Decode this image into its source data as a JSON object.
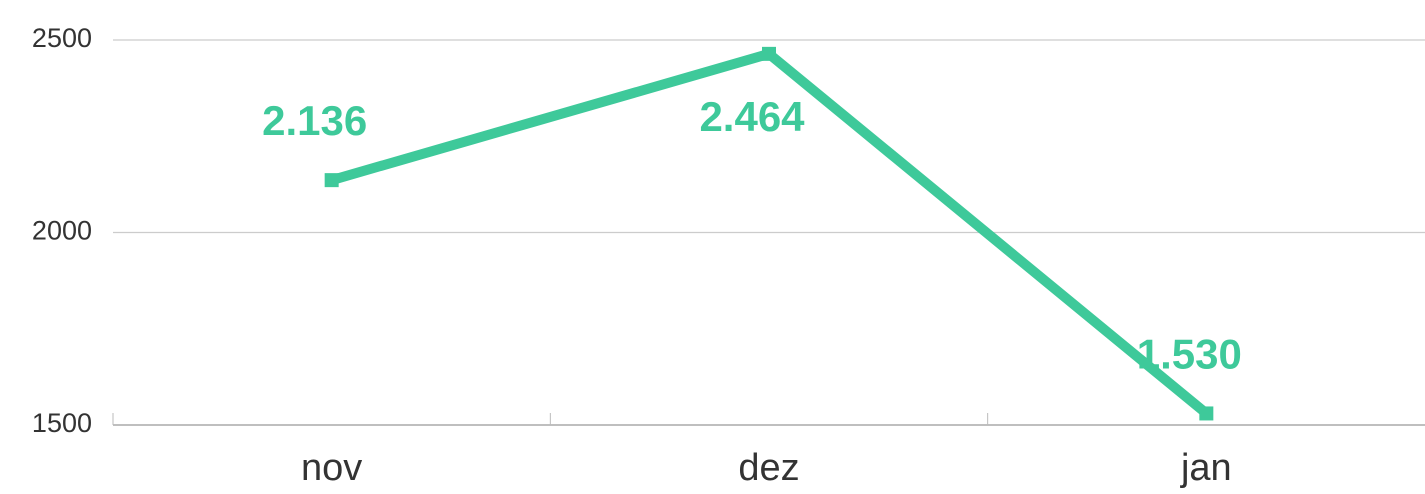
{
  "chart_data": {
    "type": "line",
    "categories": [
      "nov",
      "dez",
      "jan"
    ],
    "series": [
      {
        "color": "#3ec99a",
        "values": [
          2136,
          2464,
          1530
        ],
        "value_labels": [
          "2.136",
          "2.464",
          "1.530"
        ]
      }
    ],
    "ylim": [
      1500,
      2500
    ],
    "yticks": [
      1500,
      2000,
      2500
    ],
    "grid": true
  }
}
